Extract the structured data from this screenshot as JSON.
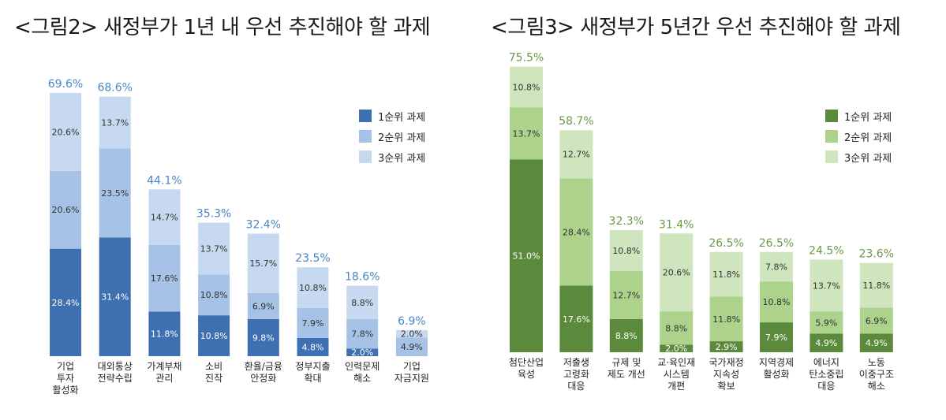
{
  "chart_data": [
    {
      "type": "bar",
      "stacked": true,
      "title": "<그림2> 새정부가 1년 내 우선 추진해야 할 과제",
      "categories": [
        "기업\n투자\n활성화",
        "대외통상\n전략수립",
        "가계부채\n관리",
        "소비\n진작",
        "환율/금융\n안정화",
        "정부지출\n확대",
        "인력문제\n해소",
        "기업\n자금지원"
      ],
      "series": [
        {
          "name": "1순위 과제",
          "values": [
            28.4,
            31.4,
            11.8,
            10.8,
            9.8,
            4.8,
            2.0,
            0
          ]
        },
        {
          "name": "2순위 과제",
          "values": [
            20.6,
            23.5,
            17.6,
            10.8,
            6.9,
            7.9,
            7.8,
            4.9
          ]
        },
        {
          "name": "3순위 과제",
          "values": [
            20.6,
            13.7,
            14.7,
            13.7,
            15.7,
            10.8,
            8.8,
            2.0
          ]
        }
      ],
      "segment_labels": [
        [
          "28.4%",
          "20.6%",
          "20.6%"
        ],
        [
          "31.4%",
          "23.5%",
          "13.7%"
        ],
        [
          "11.8%",
          "17.6%",
          "14.7%"
        ],
        [
          "10.8%",
          "10.8%",
          "13.7%"
        ],
        [
          "9.8%",
          "6.9%",
          "15.7%"
        ],
        [
          "4.8%",
          "7.9%",
          "10.8%"
        ],
        [
          "2.0%",
          "7.8%",
          "8.8%"
        ],
        [
          "",
          "4.9%",
          "2.0%"
        ]
      ],
      "totals": [
        "69.6%",
        "68.6%",
        "44.1%",
        "35.3%",
        "32.4%",
        "23.5%",
        "18.6%",
        "6.9%"
      ],
      "colors": [
        "#3e6fb0",
        "#a6c2e6",
        "#c7d9f0"
      ],
      "total_label_color": "#4a86c8",
      "legend_position": "top-right",
      "ylim": [
        0,
        80
      ]
    },
    {
      "type": "bar",
      "stacked": true,
      "title": "<그림3> 새정부가 5년간 우선 추진해야 할 과제",
      "categories": [
        "첨단산업\n육성",
        "저출생\n고령화\n대응",
        "규제 및\n제도 개선",
        "교·육인재\n시스템\n개편",
        "국가재정\n지속성\n확보",
        "지역경제\n활성화",
        "에너지\n탄소중립\n대응",
        "노동\n이중구조\n해소"
      ],
      "series": [
        {
          "name": "1순위 과제",
          "values": [
            51.0,
            17.6,
            8.8,
            2.0,
            2.9,
            7.9,
            4.9,
            4.9
          ]
        },
        {
          "name": "2순위 과제",
          "values": [
            13.7,
            28.4,
            12.7,
            8.8,
            11.8,
            10.8,
            5.9,
            6.9
          ]
        },
        {
          "name": "3순위 과제",
          "values": [
            10.8,
            12.7,
            10.8,
            20.6,
            11.8,
            7.8,
            13.7,
            11.8
          ]
        }
      ],
      "segment_labels": [
        [
          "51.0%",
          "13.7%",
          "10.8%"
        ],
        [
          "17.6%",
          "28.4%",
          "12.7%"
        ],
        [
          "8.8%",
          "12.7%",
          "10.8%"
        ],
        [
          "2.0%",
          "8.8%",
          "20.6%"
        ],
        [
          "2.9%",
          "11.8%",
          "11.8%"
        ],
        [
          "7.9%",
          "10.8%",
          "7.8%"
        ],
        [
          "4.9%",
          "5.9%",
          "13.7%"
        ],
        [
          "4.9%",
          "6.9%",
          "11.8%"
        ]
      ],
      "totals": [
        "75.5%",
        "58.7%",
        "32.3%",
        "31.4%",
        "26.5%",
        "26.5%",
        "24.5%",
        "23.6%"
      ],
      "colors": [
        "#5c8a3c",
        "#acd28c",
        "#cfe5be"
      ],
      "total_label_color": "#6a9b48",
      "legend_position": "top-right",
      "ylim": [
        0,
        80
      ]
    }
  ]
}
